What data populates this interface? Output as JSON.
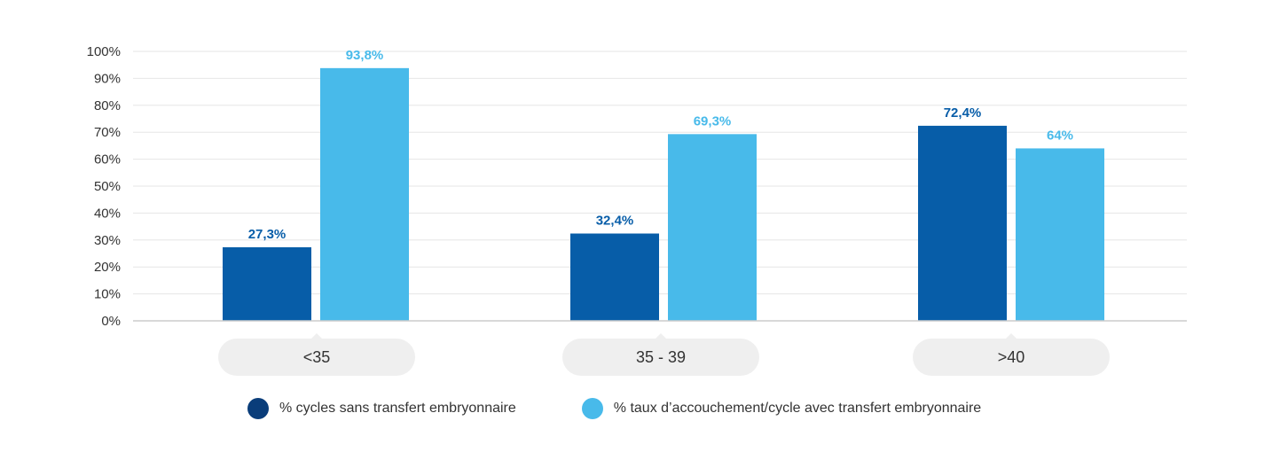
{
  "colors": {
    "series1": "#075DA8",
    "series2": "#48BAEA",
    "series1_legend": "#0A3D7A"
  },
  "chart_data": {
    "type": "bar",
    "categories": [
      "<35",
      "35 - 39",
      ">40"
    ],
    "series": [
      {
        "name": "% cycles sans transfert embryonnaire",
        "values": [
          27.3,
          32.4,
          72.4
        ],
        "labels": [
          "27,3%",
          "32,4%",
          "72,4%"
        ]
      },
      {
        "name": "% taux d’accouchement/cycle avec transfert embryonnaire",
        "values": [
          93.8,
          69.3,
          64
        ],
        "labels": [
          "93,8%",
          "69,3%",
          "64%"
        ]
      }
    ],
    "yticks": [
      "0%",
      "10%",
      "20%",
      "30%",
      "40%",
      "50%",
      "60%",
      "70%",
      "80%",
      "90%",
      "100%"
    ],
    "ylim": [
      0,
      100
    ],
    "title": "",
    "xlabel": "",
    "ylabel": "",
    "grid": true,
    "legend_position": "bottom"
  }
}
